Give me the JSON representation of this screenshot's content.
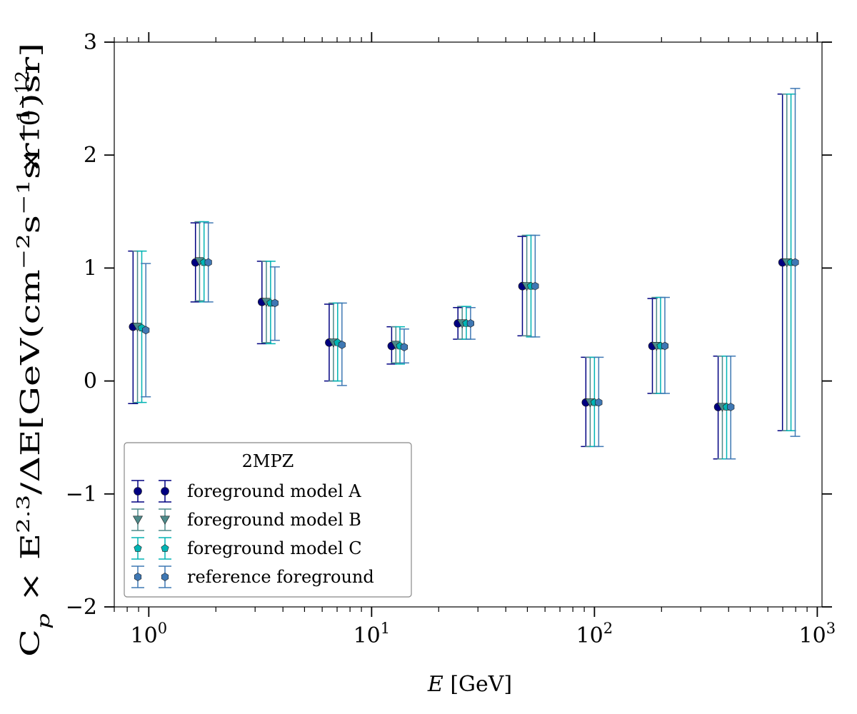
{
  "chart_data": {
    "type": "scatter",
    "x_axis": {
      "scale": "log",
      "range": [
        0.7,
        1050
      ],
      "ticks": [
        {
          "value": 1,
          "mantissa": "10",
          "exponent": "0"
        },
        {
          "value": 10,
          "mantissa": "10",
          "exponent": "1"
        },
        {
          "value": 100,
          "mantissa": "10",
          "exponent": "2"
        },
        {
          "value": 1000,
          "mantissa": "10",
          "exponent": "3"
        }
      ],
      "label_math": "E",
      "label_unit": "[GeV]"
    },
    "y_axis": {
      "scale": "linear",
      "range": [
        -2,
        3
      ],
      "ticks": [
        {
          "value": -2,
          "label": "−2"
        },
        {
          "value": -1,
          "label": "−1"
        },
        {
          "value": 0,
          "label": "0"
        },
        {
          "value": 1,
          "label": "1"
        },
        {
          "value": 2,
          "label": "2"
        },
        {
          "value": 3,
          "label": "3"
        }
      ],
      "label": "C_p × E^{2.3}/ΔE[GeV(cm^{−2}s^{−1}sr^{−1})sr]",
      "multiplier": "× 10^{−12}"
    },
    "legend": {
      "title": "2MPZ",
      "placement": "lower-left"
    },
    "series": [
      {
        "name": "foreground model A",
        "marker": "circle",
        "color": "#000080",
        "points": [
          {
            "x": 0.85,
            "y": 0.48,
            "ylo": -0.2,
            "yhi": 1.15
          },
          {
            "x": 1.62,
            "y": 1.05,
            "ylo": 0.7,
            "yhi": 1.4
          },
          {
            "x": 3.22,
            "y": 0.7,
            "ylo": 0.33,
            "yhi": 1.06
          },
          {
            "x": 6.45,
            "y": 0.34,
            "ylo": 0.0,
            "yhi": 0.68
          },
          {
            "x": 12.3,
            "y": 0.31,
            "ylo": 0.15,
            "yhi": 0.48
          },
          {
            "x": 24.4,
            "y": 0.51,
            "ylo": 0.37,
            "yhi": 0.65
          },
          {
            "x": 47.5,
            "y": 0.84,
            "ylo": 0.4,
            "yhi": 1.28
          },
          {
            "x": 91.5,
            "y": -0.19,
            "ylo": -0.58,
            "yhi": 0.21
          },
          {
            "x": 182,
            "y": 0.31,
            "ylo": -0.11,
            "yhi": 0.73
          },
          {
            "x": 359,
            "y": -0.23,
            "ylo": -0.69,
            "yhi": 0.22
          },
          {
            "x": 698,
            "y": 1.05,
            "ylo": -0.44,
            "yhi": 2.54
          }
        ]
      },
      {
        "name": "foreground model B",
        "marker": "triangle-down",
        "color": "#4d8a8a",
        "points": [
          {
            "x": 0.89,
            "y": 0.48,
            "ylo": -0.19,
            "yhi": 1.15
          },
          {
            "x": 1.69,
            "y": 1.06,
            "ylo": 0.71,
            "yhi": 1.41
          },
          {
            "x": 3.37,
            "y": 0.7,
            "ylo": 0.34,
            "yhi": 1.06
          },
          {
            "x": 6.74,
            "y": 0.34,
            "ylo": 0.0,
            "yhi": 0.69
          },
          {
            "x": 12.85,
            "y": 0.32,
            "ylo": 0.16,
            "yhi": 0.48
          },
          {
            "x": 25.5,
            "y": 0.51,
            "ylo": 0.37,
            "yhi": 0.66
          },
          {
            "x": 49.7,
            "y": 0.84,
            "ylo": 0.4,
            "yhi": 1.29
          },
          {
            "x": 95.7,
            "y": -0.19,
            "ylo": -0.58,
            "yhi": 0.21
          },
          {
            "x": 190,
            "y": 0.31,
            "ylo": -0.11,
            "yhi": 0.74
          },
          {
            "x": 375,
            "y": -0.23,
            "ylo": -0.69,
            "yhi": 0.22
          },
          {
            "x": 730,
            "y": 1.05,
            "ylo": -0.44,
            "yhi": 2.54
          }
        ]
      },
      {
        "name": "foreground model C",
        "marker": "pentagon",
        "color": "#00b4b4",
        "points": [
          {
            "x": 0.93,
            "y": 0.47,
            "ylo": -0.19,
            "yhi": 1.15
          },
          {
            "x": 1.77,
            "y": 1.05,
            "ylo": 0.7,
            "yhi": 1.41
          },
          {
            "x": 3.52,
            "y": 0.69,
            "ylo": 0.33,
            "yhi": 1.06
          },
          {
            "x": 7.04,
            "y": 0.34,
            "ylo": 0.0,
            "yhi": 0.69
          },
          {
            "x": 13.4,
            "y": 0.31,
            "ylo": 0.15,
            "yhi": 0.48
          },
          {
            "x": 26.6,
            "y": 0.51,
            "ylo": 0.37,
            "yhi": 0.66
          },
          {
            "x": 51.9,
            "y": 0.84,
            "ylo": 0.39,
            "yhi": 1.29
          },
          {
            "x": 100,
            "y": -0.19,
            "ylo": -0.58,
            "yhi": 0.21
          },
          {
            "x": 198,
            "y": 0.31,
            "ylo": -0.11,
            "yhi": 0.74
          },
          {
            "x": 392,
            "y": -0.23,
            "ylo": -0.69,
            "yhi": 0.22
          },
          {
            "x": 762,
            "y": 1.05,
            "ylo": -0.44,
            "yhi": 2.54
          }
        ]
      },
      {
        "name": "reference foreground",
        "marker": "hexagon",
        "color": "#3f78b4",
        "points": [
          {
            "x": 0.97,
            "y": 0.45,
            "ylo": -0.14,
            "yhi": 1.04
          },
          {
            "x": 1.85,
            "y": 1.05,
            "ylo": 0.7,
            "yhi": 1.4
          },
          {
            "x": 3.68,
            "y": 0.69,
            "ylo": 0.36,
            "yhi": 1.01
          },
          {
            "x": 7.36,
            "y": 0.32,
            "ylo": -0.04,
            "yhi": 0.69
          },
          {
            "x": 14.0,
            "y": 0.3,
            "ylo": 0.16,
            "yhi": 0.46
          },
          {
            "x": 27.8,
            "y": 0.51,
            "ylo": 0.37,
            "yhi": 0.65
          },
          {
            "x": 54.2,
            "y": 0.84,
            "ylo": 0.39,
            "yhi": 1.29
          },
          {
            "x": 104.5,
            "y": -0.19,
            "ylo": -0.58,
            "yhi": 0.21
          },
          {
            "x": 207,
            "y": 0.31,
            "ylo": -0.11,
            "yhi": 0.74
          },
          {
            "x": 409,
            "y": -0.23,
            "ylo": -0.69,
            "yhi": 0.22
          },
          {
            "x": 796,
            "y": 1.05,
            "ylo": -0.49,
            "yhi": 2.59
          }
        ]
      }
    ]
  }
}
